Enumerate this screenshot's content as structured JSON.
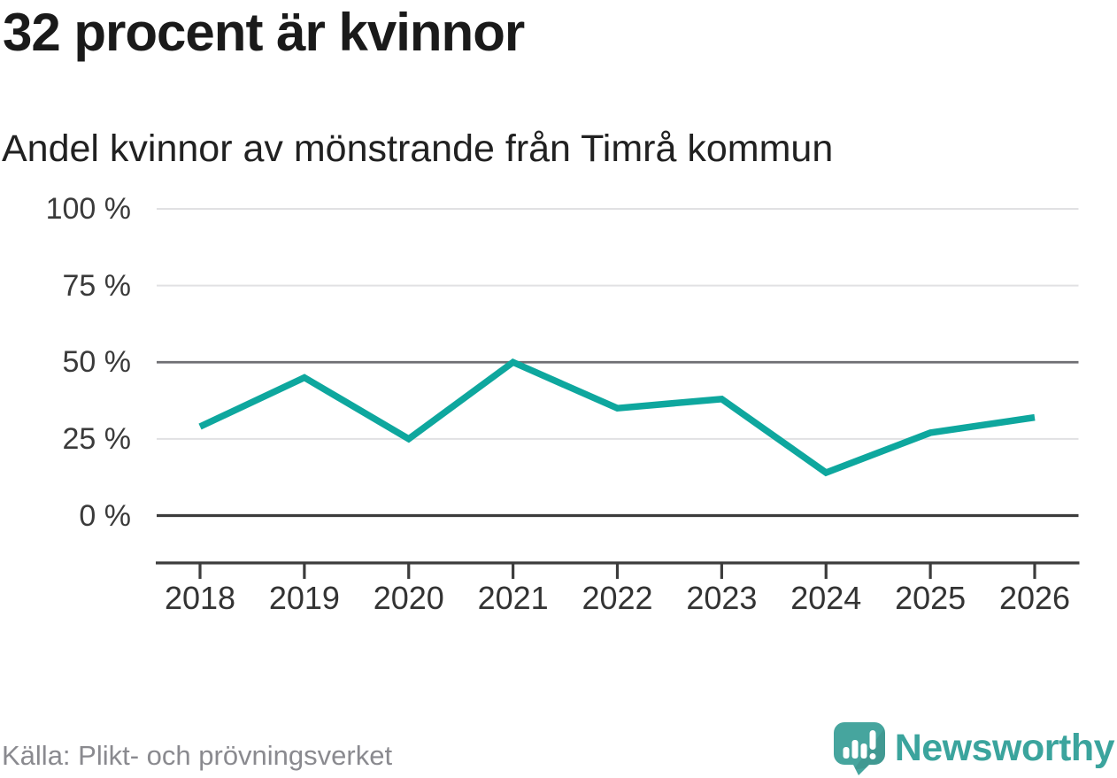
{
  "header": {
    "title": "32 procent är kvinnor",
    "subtitle": "Andel kvinnor av mönstrande från Timrå kommun"
  },
  "chart_data": {
    "type": "line",
    "title": "Andel kvinnor av mönstrande från Timrå kommun",
    "categories": [
      "2018",
      "2019",
      "2020",
      "2021",
      "2022",
      "2023",
      "2024",
      "2025",
      "2026"
    ],
    "series": [
      {
        "name": "Andel kvinnor",
        "values": [
          29,
          45,
          25,
          50,
          35,
          38,
          14,
          27,
          32
        ]
      }
    ],
    "unit": "%",
    "ylim": [
      0,
      100
    ],
    "yticks": [
      0,
      25,
      50,
      75,
      100
    ],
    "ytick_labels": [
      "0 %",
      "25 %",
      "50 %",
      "75 %",
      "100 %"
    ],
    "grid": "horizontal-only",
    "emphasized_gridlines": [
      0,
      50
    ],
    "legend": "none",
    "line_color": "#0ea79e",
    "grid_color_light": "#e1e1e3",
    "grid_color_mid": "#6f6f73",
    "grid_color_dark": "#3c3c3c",
    "axis_color": "#3c3c3c"
  },
  "footer": {
    "source": "Källa: Plikt- och prövningsverket",
    "brand_name": "Newsworthy",
    "brand_color": "#3ba49d",
    "brand_icon_color": "#46a59e"
  }
}
